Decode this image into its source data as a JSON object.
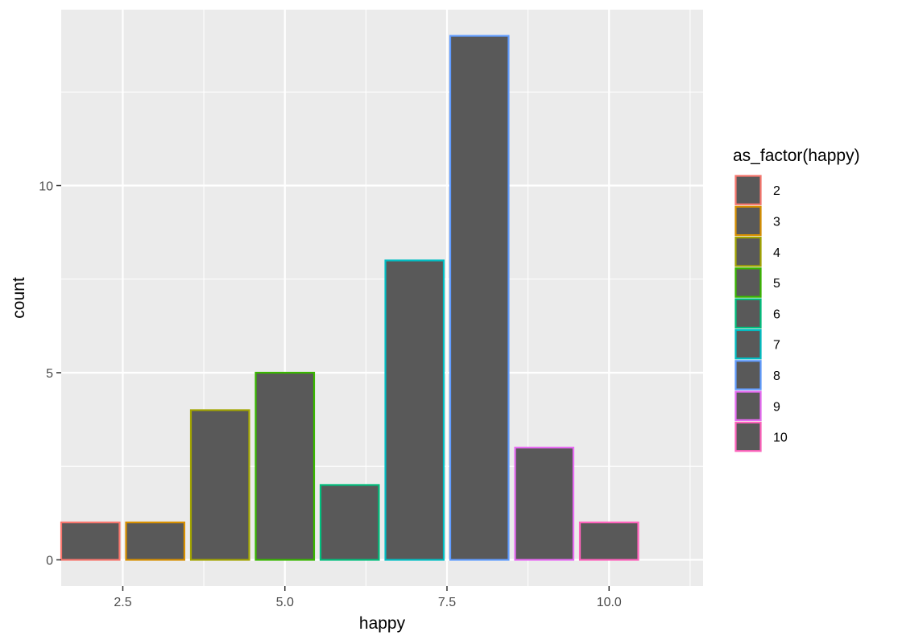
{
  "chart_data": {
    "type": "bar",
    "xlabel": "happy",
    "ylabel": "count",
    "xlim": [
      1.55,
      11.45
    ],
    "ylim": [
      -0.7,
      14.7
    ],
    "x_ticks": [
      2.5,
      5.0,
      7.5,
      10.0
    ],
    "x_tick_labels": [
      "2.5",
      "5.0",
      "7.5",
      "10.0"
    ],
    "y_ticks": [
      0,
      5,
      10
    ],
    "y_tick_labels": [
      "0",
      "5",
      "10"
    ],
    "bar_width": 0.9,
    "bar_fill": "#595959",
    "panel_background": "#ebebeb",
    "grid": true,
    "legend_position": "right",
    "legend": {
      "title": "as_factor(happy)",
      "entries": [
        {
          "label": "2",
          "color": "#F8766D"
        },
        {
          "label": "3",
          "color": "#D89000"
        },
        {
          "label": "4",
          "color": "#A3A500"
        },
        {
          "label": "5",
          "color": "#39B600"
        },
        {
          "label": "6",
          "color": "#00BF7D"
        },
        {
          "label": "7",
          "color": "#00BFC4"
        },
        {
          "label": "8",
          "color": "#619CFF"
        },
        {
          "label": "9",
          "color": "#E76BF3"
        },
        {
          "label": "10",
          "color": "#FF62BC"
        }
      ]
    },
    "bars": [
      {
        "x": 2,
        "count": 1,
        "color": "#F8766D"
      },
      {
        "x": 3,
        "count": 1,
        "color": "#D89000"
      },
      {
        "x": 4,
        "count": 4,
        "color": "#A3A500"
      },
      {
        "x": 5,
        "count": 5,
        "color": "#39B600"
      },
      {
        "x": 6,
        "count": 2,
        "color": "#00BF7D"
      },
      {
        "x": 7,
        "count": 8,
        "color": "#00BFC4"
      },
      {
        "x": 8,
        "count": 14,
        "color": "#619CFF"
      },
      {
        "x": 9,
        "count": 3,
        "color": "#E76BF3"
      },
      {
        "x": 10,
        "count": 1,
        "color": "#FF62BC"
      }
    ]
  }
}
